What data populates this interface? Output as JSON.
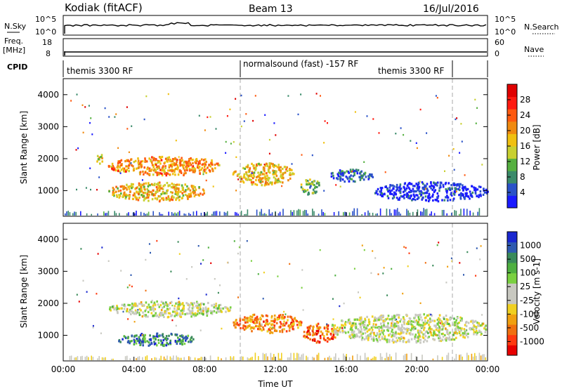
{
  "header": {
    "station": "Kodiak (fitACF)",
    "beam": "Beam 13",
    "date": "16/Jul/2016"
  },
  "top_panels": {
    "nsky": {
      "left_label": "N.Sky",
      "left_ticks": [
        "10^5",
        "10^0"
      ],
      "right_label": "N.Search",
      "right_ticks": [
        "10^5",
        "10^0"
      ]
    },
    "freq": {
      "left_label_1": "Freq.",
      "left_label_2": "[MHz]",
      "left_ticks": [
        "18",
        "8"
      ],
      "right_label": "Nave",
      "right_ticks": [
        "60",
        "0"
      ]
    },
    "cpid": {
      "label": "CPID",
      "segments": [
        "themis 3300 RF",
        "normalsound (fast) -157 RF",
        "themis 3300 RF"
      ],
      "segment_bounds_hours": [
        0,
        10,
        22,
        24
      ]
    }
  },
  "chart_data": [
    {
      "type": "heatmap",
      "name": "Power",
      "ylabel": "Slant Range [km]",
      "ylim": [
        200,
        4500
      ],
      "y_ticks": [
        "1000",
        "2000",
        "3000",
        "4000"
      ],
      "xlim": [
        0,
        24
      ],
      "colorbar": {
        "label": "Power [dB]",
        "ticks": [
          "4",
          "8",
          "12",
          "16",
          "20",
          "24",
          "28"
        ],
        "colors": [
          "#1a1aff",
          "#2a52c8",
          "#3a8a6a",
          "#55b040",
          "#c8d030",
          "#f0c010",
          "#f08a10",
          "#ff5a10",
          "#ff1a10",
          "#e00000"
        ]
      },
      "echo_regions": [
        {
          "t": [
            1.8,
            2.2
          ],
          "r": [
            1800,
            2200
          ],
          "level": 0.5
        },
        {
          "t": [
            2.5,
            9.0
          ],
          "r": [
            1500,
            2100
          ],
          "level": 0.65
        },
        {
          "t": [
            2.5,
            8.0
          ],
          "r": [
            700,
            1300
          ],
          "level": 0.55
        },
        {
          "t": [
            9.5,
            13.0
          ],
          "r": [
            1200,
            1900
          ],
          "level": 0.55
        },
        {
          "t": [
            13.3,
            14.5
          ],
          "r": [
            900,
            1400
          ],
          "level": 0.35
        },
        {
          "t": [
            15.0,
            17.5
          ],
          "r": [
            1300,
            1700
          ],
          "level": 0.15
        },
        {
          "t": [
            17.5,
            24.0
          ],
          "r": [
            700,
            1300
          ],
          "level": 0.05
        }
      ]
    },
    {
      "type": "heatmap",
      "name": "Velocity",
      "ylabel": "Slant Range [km]",
      "xlabel": "Time UT",
      "ylim": [
        200,
        4500
      ],
      "y_ticks": [
        "1000",
        "2000",
        "3000",
        "4000"
      ],
      "xlim": [
        0,
        24
      ],
      "x_ticks": [
        "00:00",
        "04:00",
        "08:00",
        "12:00",
        "16:00",
        "20:00",
        "00:00"
      ],
      "colorbar": {
        "label": "Velocity [m s-1]",
        "ticks": [
          "1000",
          "500",
          "100",
          "25",
          "-25",
          "-100",
          "-500",
          "-1000"
        ],
        "colors": [
          "#1a28d0",
          "#2f5ab0",
          "#3a8a5a",
          "#4fb040",
          "#7ad040",
          "#c8c8c0",
          "#c8c8c0",
          "#f0d020",
          "#f0a010",
          "#f07010",
          "#ff3a10",
          "#e80000"
        ]
      },
      "echo_regions": [
        {
          "t": [
            2.5,
            9.5
          ],
          "r": [
            1600,
            2100
          ],
          "level": 0.5
        },
        {
          "t": [
            3.0,
            7.5
          ],
          "r": [
            700,
            1100
          ],
          "level": 0.2
        },
        {
          "t": [
            9.5,
            13.5
          ],
          "r": [
            1100,
            1700
          ],
          "level": 0.75
        },
        {
          "t": [
            13.5,
            15.5
          ],
          "r": [
            800,
            1400
          ],
          "level": 0.8
        },
        {
          "t": [
            15.0,
            24.0
          ],
          "r": [
            800,
            1700
          ],
          "level": 0.5
        }
      ]
    }
  ]
}
